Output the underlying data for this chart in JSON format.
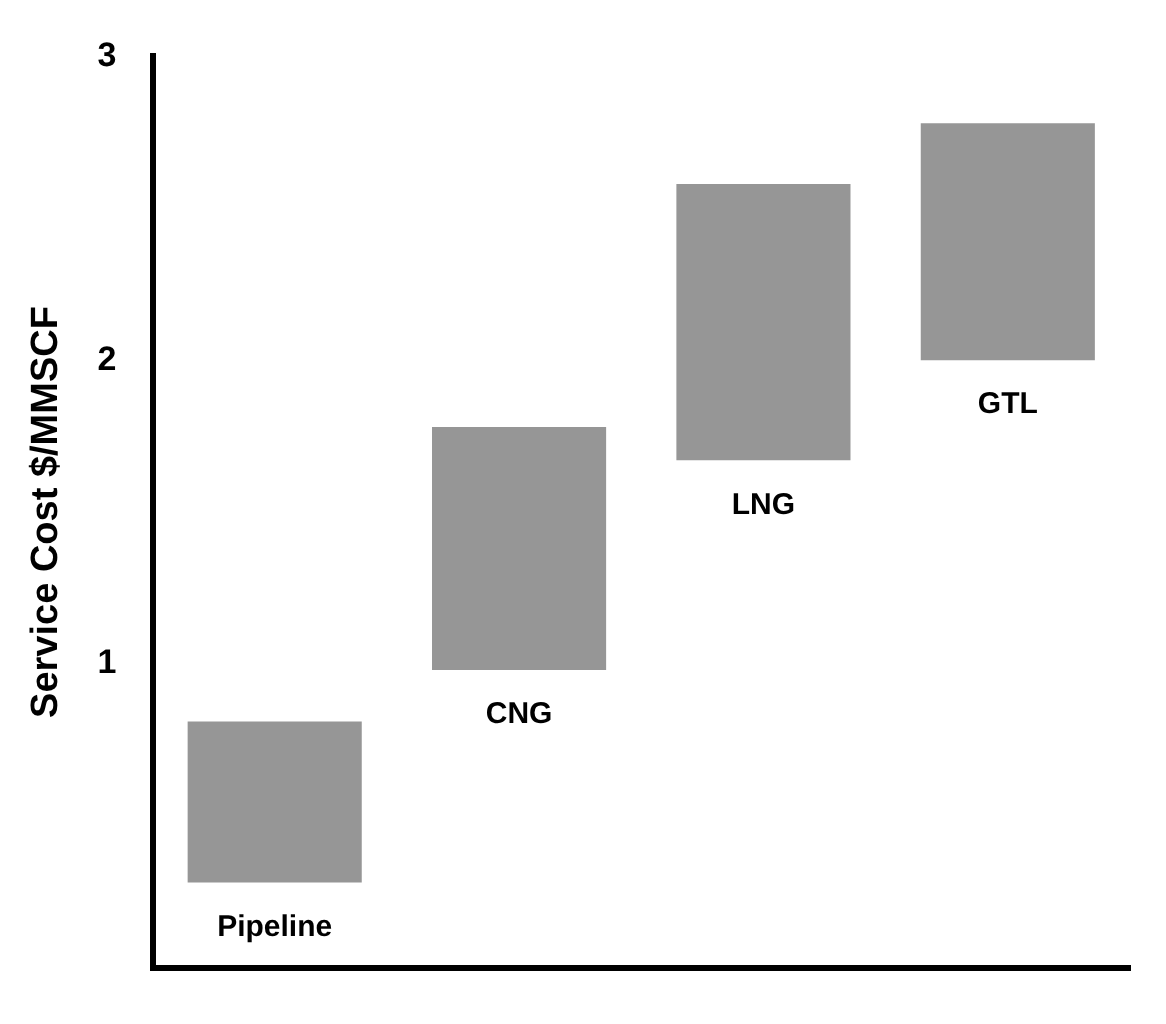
{
  "chart_data": {
    "type": "bar",
    "ylabel": "Service Cost $/MMSCF",
    "categories": [
      "Pipeline",
      "CNG",
      "LNG",
      "GTL"
    ],
    "base": [
      0.28,
      0.98,
      1.67,
      2.0
    ],
    "values": [
      0.53,
      0.8,
      0.91,
      0.78
    ],
    "color": "#969696",
    "ylim": [
      0,
      3
    ],
    "yticks": [
      1,
      2,
      3
    ],
    "grid": false,
    "legend": false,
    "tick_labels": "y"
  }
}
